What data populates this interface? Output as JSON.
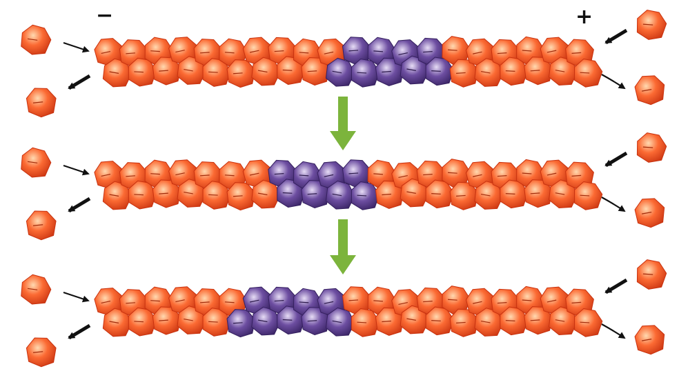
{
  "labels": {
    "minus_end": "−",
    "plus_end": "+"
  },
  "colors": {
    "actin_light": "#ffd9b0",
    "actin_mid": "#fb6a33",
    "actin_dark": "#c8320f",
    "marked_light": "#e6dcf5",
    "marked_mid": "#6d4ea1",
    "marked_dark": "#35205f",
    "transition_arrow": "#7cb43c",
    "flux_arrow": "#111111"
  },
  "filaments": [
    {
      "stage": 1,
      "marked_segment_fraction": [
        0.49,
        0.7
      ]
    },
    {
      "stage": 2,
      "marked_segment_fraction": [
        0.36,
        0.56
      ]
    },
    {
      "stage": 3,
      "marked_segment_fraction": [
        0.3,
        0.5
      ]
    }
  ],
  "icons": {
    "transition": "green-down-arrow",
    "monomer": "actin-monomer",
    "assembly": "assembly-arrow",
    "disassembly": "disassembly-arrow"
  }
}
